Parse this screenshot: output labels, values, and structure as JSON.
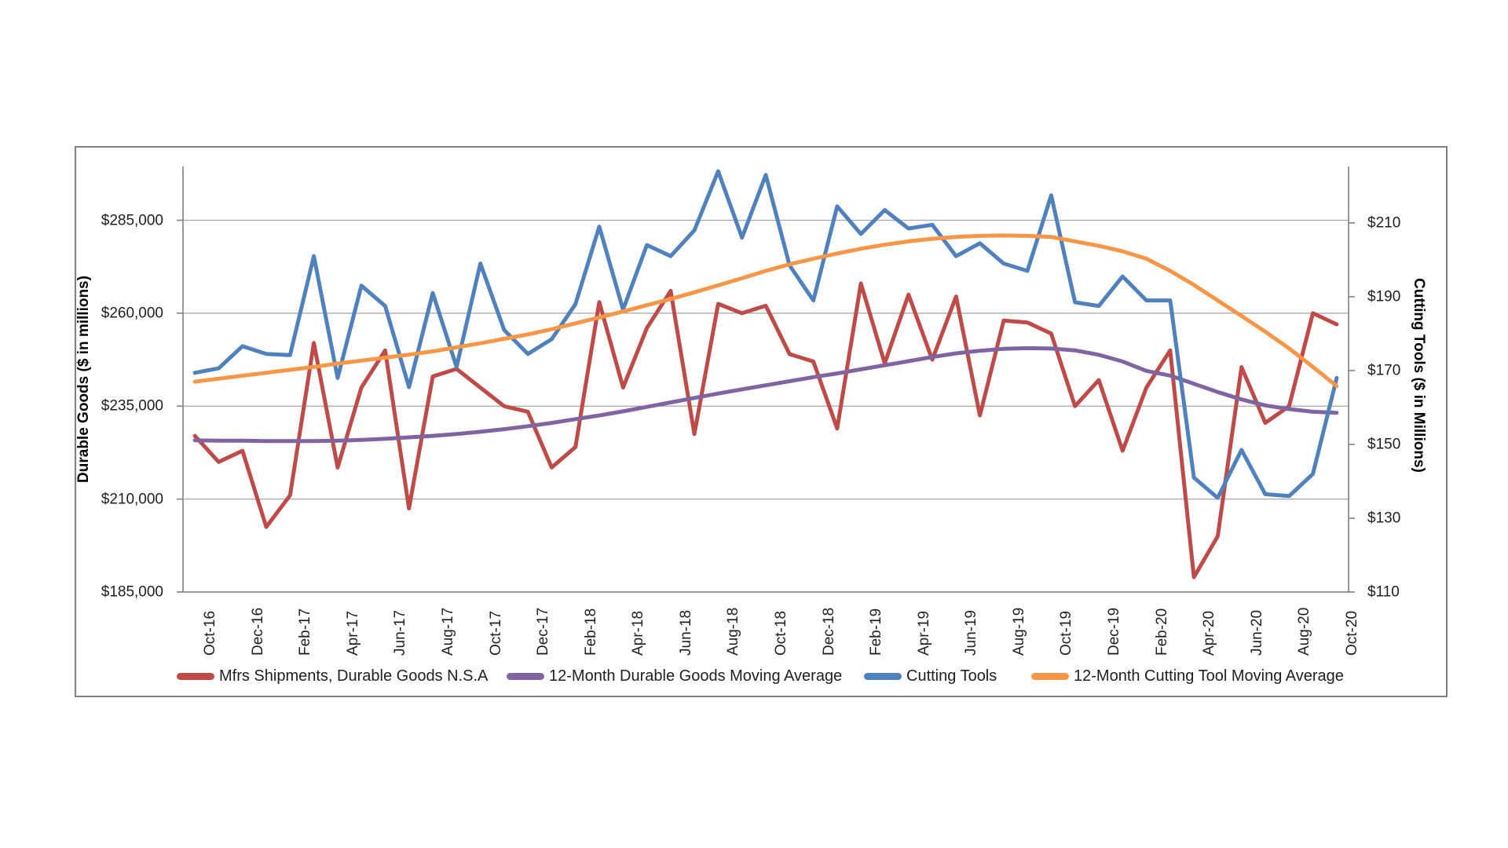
{
  "page": {
    "background": "#ffffff"
  },
  "chart_data": {
    "type": "line",
    "title": "",
    "grid": true,
    "legend_position": "bottom",
    "x_categories": [
      "Oct-16",
      "Nov-16",
      "Dec-16",
      "Jan-17",
      "Feb-17",
      "Mar-17",
      "Apr-17",
      "May-17",
      "Jun-17",
      "Jul-17",
      "Aug-17",
      "Sep-17",
      "Oct-17",
      "Nov-17",
      "Dec-17",
      "Jan-18",
      "Feb-18",
      "Mar-18",
      "Apr-18",
      "May-18",
      "Jun-18",
      "Jul-18",
      "Aug-18",
      "Sep-18",
      "Oct-18",
      "Nov-18",
      "Dec-18",
      "Jan-19",
      "Feb-19",
      "Mar-19",
      "Apr-19",
      "May-19",
      "Jun-19",
      "Jul-19",
      "Aug-19",
      "Sep-19",
      "Oct-19",
      "Nov-19",
      "Dec-19",
      "Jan-20",
      "Feb-20",
      "Mar-20",
      "Apr-20",
      "May-20",
      "Jun-20",
      "Jul-20",
      "Aug-20",
      "Sep-20",
      "Oct-20"
    ],
    "x_tick_every": 2,
    "left_axis": {
      "title": "Durable Goods ($ in millions)",
      "min": 185000,
      "max": 299467,
      "tick_values": [
        285000,
        260000,
        235000,
        210000,
        185000
      ],
      "tick_labels": [
        "$285,000",
        "$260,000",
        "$235,000",
        "$210,000",
        "$185,000"
      ]
    },
    "right_axis": {
      "title": "Cutting Tools ($ in Millions)",
      "min": 110,
      "max": 225.3,
      "tick_values": [
        210,
        190,
        170,
        150,
        130,
        110
      ],
      "tick_labels": [
        "$210",
        "$190",
        "$170",
        "$150",
        "$130",
        "$110"
      ]
    },
    "series": [
      {
        "name": "Mfrs Shipments, Durable Goods N.S.A",
        "axis": "left",
        "color": "#be4b48",
        "values": [
          227000,
          220000,
          223000,
          202500,
          211000,
          252000,
          218500,
          240000,
          250000,
          207500,
          243000,
          245000,
          240000,
          235000,
          233500,
          218500,
          224000,
          263000,
          240000,
          256000,
          266000,
          227500,
          262500,
          260000,
          262000,
          249000,
          247000,
          229000,
          268000,
          246500,
          265000,
          247500,
          264500,
          232500,
          258000,
          257500,
          254500,
          235000,
          242000,
          223000,
          240000,
          250000,
          189000,
          200000,
          245500,
          230500,
          235000,
          260000,
          257000
        ]
      },
      {
        "name": "12-Month Durable Goods Moving Average",
        "axis": "left",
        "color": "#8064a2",
        "values": [
          225800,
          225700,
          225700,
          225600,
          225600,
          225600,
          225700,
          225900,
          226200,
          226600,
          227000,
          227500,
          228100,
          228800,
          229600,
          230500,
          231500,
          232500,
          233600,
          234800,
          236000,
          237200,
          238400,
          239500,
          240600,
          241700,
          242800,
          243800,
          244900,
          246000,
          247100,
          248200,
          249200,
          249900,
          250400,
          250600,
          250500,
          250000,
          248800,
          247000,
          244500,
          243200,
          241000,
          238800,
          236800,
          235200,
          234200,
          233500,
          233200
        ]
      },
      {
        "name": "Cutting Tools",
        "axis": "right",
        "color": "#4f81bd",
        "values": [
          169.4,
          170.6,
          176.6,
          174.5,
          174.2,
          201,
          168,
          193,
          187.5,
          165.5,
          191,
          171,
          199,
          181,
          174.5,
          178.5,
          188,
          209,
          186.5,
          204,
          201,
          208,
          224,
          206,
          223,
          198.5,
          189,
          214.5,
          207,
          213.5,
          208.5,
          209.5,
          201,
          204.5,
          199,
          197,
          217.5,
          188.5,
          187.5,
          195.5,
          189,
          189,
          141,
          135.5,
          148.5,
          136.5,
          136,
          142,
          168
        ]
      },
      {
        "name": "12-Month Cutting Tool Moving Average",
        "axis": "right",
        "color": "#f79646",
        "values": [
          167,
          167.8,
          168.6,
          169.4,
          170.2,
          171,
          171.9,
          172.7,
          173.5,
          174.3,
          175.2,
          176.3,
          177.4,
          178.6,
          179.8,
          181.2,
          182.8,
          184.4,
          186,
          187.7,
          189.4,
          191.2,
          193.1,
          195,
          197,
          198.8,
          200.3,
          201.7,
          203,
          204.1,
          205,
          205.7,
          206.2,
          206.5,
          206.6,
          206.5,
          206.2,
          205,
          203.8,
          202.3,
          200.3,
          197,
          193.2,
          189,
          184.8,
          180.5,
          176,
          171,
          165.8
        ]
      }
    ],
    "legend": [
      "Mfrs Shipments, Durable Goods N.S.A",
      "12-Month Durable Goods Moving Average",
      "Cutting Tools",
      "12-Month Cutting Tool Moving Average"
    ]
  }
}
